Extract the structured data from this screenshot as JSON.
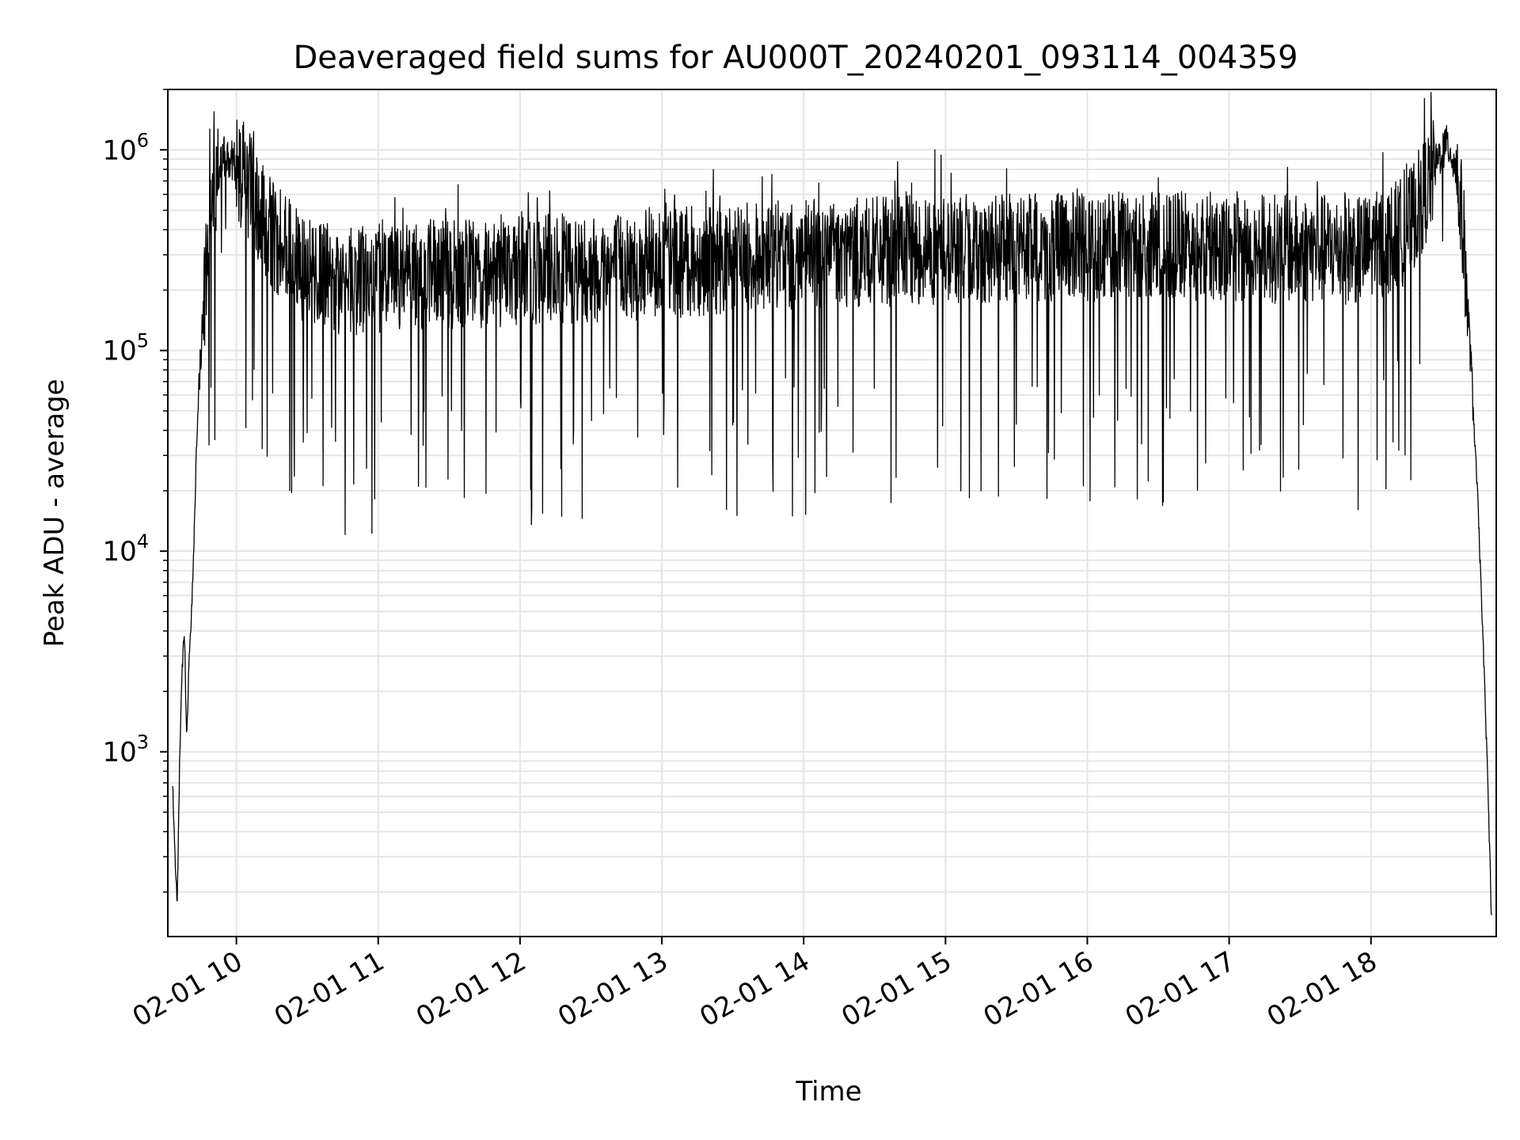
{
  "chart_data": {
    "type": "line",
    "title": "Deaveraged field sums for AU000T_20240201_093114_004359",
    "xlabel": "Time",
    "ylabel": "Peak ADU - average",
    "yscale": "log",
    "ylim": [
      120,
      2000000
    ],
    "xlim": [
      "2024-02-01 09:31",
      "2024-02-01 18:53"
    ],
    "grid": true,
    "x_ticks": [
      "02-01 10",
      "02-01 11",
      "02-01 12",
      "02-01 13",
      "02-01 14",
      "02-01 15",
      "02-01 16",
      "02-01 17",
      "02-01 18"
    ],
    "y_ticks": [
      {
        "base": "10",
        "exp": "3",
        "value": 1000
      },
      {
        "base": "10",
        "exp": "4",
        "value": 10000
      },
      {
        "base": "10",
        "exp": "5",
        "value": 100000
      },
      {
        "base": "10",
        "exp": "6",
        "value": 1000000
      }
    ],
    "line_color": "#000000",
    "grid_color": "#e5e5e5",
    "series": [
      {
        "x": [
          "2024-02-01 09:33",
          "2024-02-01 09:34",
          "2024-02-01 09:35",
          "2024-02-01 09:36",
          "2024-02-01 09:37",
          "2024-02-01 09:38",
          "2024-02-01 09:39",
          "2024-02-01 09:40",
          "2024-02-01 09:41",
          "2024-02-01 09:42",
          "2024-02-01 09:43",
          "2024-02-01 09:44",
          "2024-02-01 09:46",
          "2024-02-01 09:48",
          "2024-02-01 09:50",
          "2024-02-01 09:53",
          "2024-02-01 09:56",
          "2024-02-01 09:58",
          "2024-02-01 10:00",
          "2024-02-01 10:03",
          "2024-02-01 10:06",
          "2024-02-01 10:10",
          "2024-02-01 10:15",
          "2024-02-01 10:20",
          "2024-02-01 10:30",
          "2024-02-01 10:40",
          "2024-02-01 10:50",
          "2024-02-01 11:00",
          "2024-02-01 11:30",
          "2024-02-01 12:00",
          "2024-02-01 12:30",
          "2024-02-01 13:00",
          "2024-02-01 13:30",
          "2024-02-01 14:00",
          "2024-02-01 14:30",
          "2024-02-01 15:00",
          "2024-02-01 15:30",
          "2024-02-01 16:00",
          "2024-02-01 16:30",
          "2024-02-01 17:00",
          "2024-02-01 17:30",
          "2024-02-01 18:00",
          "2024-02-01 18:15",
          "2024-02-01 18:25",
          "2024-02-01 18:30",
          "2024-02-01 18:33",
          "2024-02-01 18:36",
          "2024-02-01 18:39",
          "2024-02-01 18:42",
          "2024-02-01 18:45",
          "2024-02-01 18:47",
          "2024-02-01 18:49",
          "2024-02-01 18:50",
          "2024-02-01 18:51"
        ],
        "y": [
          700,
          300,
          180,
          900,
          2500,
          4000,
          1100,
          3000,
          5000,
          10000,
          30000,
          60000,
          150000,
          350000,
          650000,
          850000,
          950000,
          900000,
          800000,
          750000,
          650000,
          500000,
          380000,
          330000,
          250000,
          230000,
          220000,
          230000,
          240000,
          250000,
          260000,
          270000,
          290000,
          300000,
          310000,
          320000,
          320000,
          330000,
          330000,
          330000,
          320000,
          320000,
          400000,
          700000,
          1000000,
          1050000,
          800000,
          400000,
          100000,
          20000,
          5000,
          1000,
          400,
          150
        ]
      }
    ]
  }
}
